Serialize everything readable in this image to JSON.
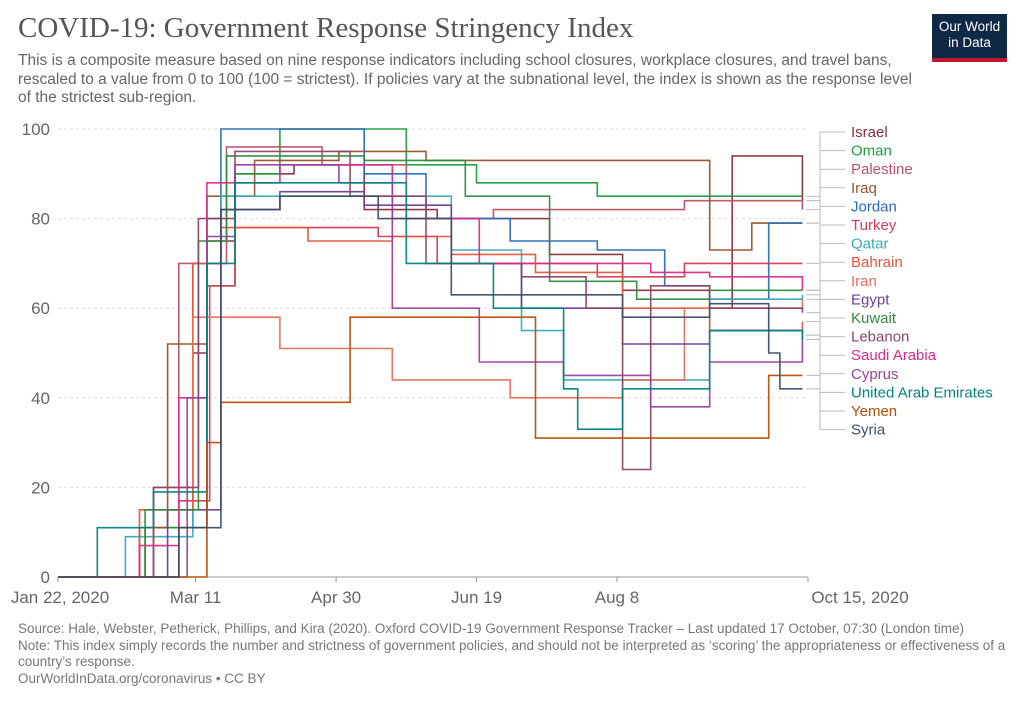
{
  "header": {
    "title": "COVID-19: Government Response Stringency Index",
    "subtitle": "This is a composite measure based on nine response indicators including school closures, workplace closures, and travel bans, rescaled to a value from 0 to 100 (100 = strictest). If policies vary at the subnational level, the index is shown as the response level of the strictest sub-region.",
    "logo_line1": "Our World",
    "logo_line2": "in Data"
  },
  "footer": {
    "source": "Source: Hale, Webster, Petherick, Phillips, and Kira (2020). Oxford COVID-19 Government Response Tracker – Last updated 17 October, 07:30 (London time)",
    "note": "Note: This index simply records the number and strictness of government policies, and should not be interpreted as ‘scoring’ the appropriateness or effectiveness of a country’s response.",
    "credit": "OurWorldInData.org/coronavirus • CC BY"
  },
  "colors": {
    "logo_bg": "#0f2846",
    "logo_accent": "#c0162e"
  },
  "chart_data": {
    "type": "line",
    "x_start": "2020-01-22",
    "x_end": "2020-10-15",
    "x_tick_labels": [
      "Jan 22, 2020",
      "Mar 11",
      "Apr 30",
      "Jun 19",
      "Aug 8",
      "Oct 15, 2020"
    ],
    "x_tick_dates": [
      "2020-01-22",
      "2020-03-11",
      "2020-04-30",
      "2020-06-19",
      "2020-08-08",
      "2020-10-15"
    ],
    "ylim": [
      0,
      100
    ],
    "y_ticks": [
      0,
      20,
      40,
      60,
      80,
      100
    ],
    "grid": "horizontal",
    "legend": "right",
    "series": [
      {
        "name": "Israel",
        "color": "#883039",
        "values": [
          [
            "2020-01-22",
            0
          ],
          [
            "2020-02-20",
            11
          ],
          [
            "2020-03-10",
            50
          ],
          [
            "2020-03-15",
            75
          ],
          [
            "2020-03-25",
            90
          ],
          [
            "2020-04-15",
            92
          ],
          [
            "2020-05-10",
            82
          ],
          [
            "2020-06-05",
            80
          ],
          [
            "2020-07-15",
            72
          ],
          [
            "2020-08-10",
            64
          ],
          [
            "2020-09-10",
            60
          ],
          [
            "2020-09-18",
            94
          ],
          [
            "2020-09-30",
            94
          ],
          [
            "2020-10-13",
            84
          ]
        ]
      },
      {
        "name": "Oman",
        "color": "#1a9e3e",
        "values": [
          [
            "2020-01-22",
            0
          ],
          [
            "2020-02-25",
            11
          ],
          [
            "2020-03-15",
            65
          ],
          [
            "2020-03-25",
            90
          ],
          [
            "2020-04-10",
            100
          ],
          [
            "2020-05-15",
            100
          ],
          [
            "2020-05-25",
            92
          ],
          [
            "2020-06-19",
            88
          ],
          [
            "2020-07-15",
            88
          ],
          [
            "2020-08-01",
            85
          ],
          [
            "2020-09-01",
            85
          ],
          [
            "2020-10-13",
            85
          ]
        ]
      },
      {
        "name": "Palestine",
        "color": "#c15065",
        "values": [
          [
            "2020-01-22",
            0
          ],
          [
            "2020-03-05",
            70
          ],
          [
            "2020-03-22",
            96
          ],
          [
            "2020-04-25",
            92
          ],
          [
            "2020-05-25",
            80
          ],
          [
            "2020-06-25",
            82
          ],
          [
            "2020-07-25",
            82
          ],
          [
            "2020-09-01",
            84
          ],
          [
            "2020-10-13",
            82
          ]
        ]
      },
      {
        "name": "Iraq",
        "color": "#9a5129",
        "values": [
          [
            "2020-01-22",
            0
          ],
          [
            "2020-02-22",
            11
          ],
          [
            "2020-03-01",
            52
          ],
          [
            "2020-03-15",
            85
          ],
          [
            "2020-04-01",
            93
          ],
          [
            "2020-05-01",
            95
          ],
          [
            "2020-06-01",
            93
          ],
          [
            "2020-07-10",
            93
          ],
          [
            "2020-08-20",
            93
          ],
          [
            "2020-09-10",
            73
          ],
          [
            "2020-09-25",
            79
          ],
          [
            "2020-10-13",
            79
          ]
        ]
      },
      {
        "name": "Jordan",
        "color": "#286bbb",
        "values": [
          [
            "2020-01-22",
            0
          ],
          [
            "2020-03-05",
            11
          ],
          [
            "2020-03-15",
            80
          ],
          [
            "2020-03-20",
            100
          ],
          [
            "2020-04-25",
            100
          ],
          [
            "2020-05-10",
            90
          ],
          [
            "2020-06-01",
            80
          ],
          [
            "2020-07-01",
            75
          ],
          [
            "2020-08-01",
            73
          ],
          [
            "2020-08-25",
            65
          ],
          [
            "2020-09-10",
            62
          ],
          [
            "2020-10-01",
            79
          ],
          [
            "2020-10-13",
            79
          ]
        ]
      },
      {
        "name": "Turkey",
        "color": "#d73c50",
        "values": [
          [
            "2020-01-22",
            0
          ],
          [
            "2020-03-05",
            17
          ],
          [
            "2020-03-16",
            65
          ],
          [
            "2020-03-25",
            78
          ],
          [
            "2020-04-10",
            78
          ],
          [
            "2020-05-15",
            76
          ],
          [
            "2020-06-05",
            70
          ],
          [
            "2020-07-01",
            70
          ],
          [
            "2020-08-01",
            67
          ],
          [
            "2020-09-01",
            70
          ],
          [
            "2020-10-13",
            70
          ]
        ]
      },
      {
        "name": "Qatar",
        "color": "#38aaba",
        "values": [
          [
            "2020-01-22",
            0
          ],
          [
            "2020-02-15",
            9
          ],
          [
            "2020-03-10",
            70
          ],
          [
            "2020-03-20",
            85
          ],
          [
            "2020-05-01",
            85
          ],
          [
            "2020-06-10",
            73
          ],
          [
            "2020-07-05",
            55
          ],
          [
            "2020-07-20",
            44
          ],
          [
            "2020-08-10",
            44
          ],
          [
            "2020-09-10",
            62
          ],
          [
            "2020-10-13",
            63
          ]
        ]
      },
      {
        "name": "Bahrain",
        "color": "#e6543c",
        "values": [
          [
            "2020-01-22",
            0
          ],
          [
            "2020-02-20",
            15
          ],
          [
            "2020-03-10",
            70
          ],
          [
            "2020-03-20",
            78
          ],
          [
            "2020-04-20",
            75
          ],
          [
            "2020-05-20",
            76
          ],
          [
            "2020-06-10",
            72
          ],
          [
            "2020-07-10",
            68
          ],
          [
            "2020-08-10",
            60
          ],
          [
            "2020-09-10",
            55
          ],
          [
            "2020-10-13",
            57
          ]
        ]
      },
      {
        "name": "Iran",
        "color": "#e56e5a",
        "values": [
          [
            "2020-01-22",
            0
          ],
          [
            "2020-02-25",
            20
          ],
          [
            "2020-03-10",
            58
          ],
          [
            "2020-03-20",
            58
          ],
          [
            "2020-04-10",
            51
          ],
          [
            "2020-05-01",
            51
          ],
          [
            "2020-05-20",
            44
          ],
          [
            "2020-06-05",
            44
          ],
          [
            "2020-07-01",
            40
          ],
          [
            "2020-08-10",
            44
          ],
          [
            "2020-09-01",
            60
          ],
          [
            "2020-10-13",
            62
          ]
        ]
      },
      {
        "name": "Egypt",
        "color": "#6d3e91",
        "values": [
          [
            "2020-01-22",
            0
          ],
          [
            "2020-03-01",
            15
          ],
          [
            "2020-03-20",
            82
          ],
          [
            "2020-04-10",
            86
          ],
          [
            "2020-05-10",
            83
          ],
          [
            "2020-06-10",
            70
          ],
          [
            "2020-07-05",
            60
          ],
          [
            "2020-07-25",
            60
          ],
          [
            "2020-08-10",
            52
          ],
          [
            "2020-09-10",
            55
          ],
          [
            "2020-10-13",
            54
          ]
        ]
      },
      {
        "name": "Kuwait",
        "color": "#2f8a3e",
        "values": [
          [
            "2020-01-22",
            0
          ],
          [
            "2020-02-22",
            15
          ],
          [
            "2020-03-12",
            75
          ],
          [
            "2020-03-22",
            94
          ],
          [
            "2020-05-10",
            93
          ],
          [
            "2020-06-15",
            85
          ],
          [
            "2020-07-15",
            66
          ],
          [
            "2020-08-15",
            62
          ],
          [
            "2020-09-10",
            64
          ],
          [
            "2020-10-13",
            64
          ]
        ]
      },
      {
        "name": "Lebanon",
        "color": "#8c4569",
        "values": [
          [
            "2020-01-22",
            0
          ],
          [
            "2020-02-25",
            20
          ],
          [
            "2020-03-12",
            80
          ],
          [
            "2020-03-25",
            95
          ],
          [
            "2020-05-05",
            85
          ],
          [
            "2020-06-01",
            70
          ],
          [
            "2020-07-05",
            67
          ],
          [
            "2020-07-28",
            60
          ],
          [
            "2020-08-10",
            24
          ],
          [
            "2020-08-20",
            65
          ],
          [
            "2020-09-10",
            60
          ],
          [
            "2020-10-13",
            59
          ]
        ]
      },
      {
        "name": "Saudi Arabia",
        "color": "#d92b8a",
        "values": [
          [
            "2020-01-22",
            0
          ],
          [
            "2020-02-20",
            7
          ],
          [
            "2020-03-05",
            40
          ],
          [
            "2020-03-15",
            88
          ],
          [
            "2020-04-10",
            92
          ],
          [
            "2020-05-20",
            80
          ],
          [
            "2020-06-20",
            70
          ],
          [
            "2020-07-20",
            70
          ],
          [
            "2020-08-20",
            68
          ],
          [
            "2020-09-10",
            67
          ],
          [
            "2020-10-13",
            64
          ]
        ]
      },
      {
        "name": "Cyprus",
        "color": "#9a3f9e",
        "values": [
          [
            "2020-01-22",
            0
          ],
          [
            "2020-03-08",
            40
          ],
          [
            "2020-03-15",
            76
          ],
          [
            "2020-03-25",
            92
          ],
          [
            "2020-05-01",
            88
          ],
          [
            "2020-05-20",
            60
          ],
          [
            "2020-06-20",
            48
          ],
          [
            "2020-07-20",
            45
          ],
          [
            "2020-08-20",
            38
          ],
          [
            "2020-09-10",
            48
          ],
          [
            "2020-10-13",
            54
          ]
        ]
      },
      {
        "name": "United Arab Emirates",
        "color": "#00847e",
        "values": [
          [
            "2020-01-22",
            0
          ],
          [
            "2020-02-05",
            11
          ],
          [
            "2020-02-25",
            19
          ],
          [
            "2020-03-15",
            70
          ],
          [
            "2020-03-25",
            88
          ],
          [
            "2020-04-30",
            88
          ],
          [
            "2020-05-25",
            70
          ],
          [
            "2020-06-25",
            60
          ],
          [
            "2020-07-20",
            42
          ],
          [
            "2020-07-25",
            33
          ],
          [
            "2020-08-10",
            42
          ],
          [
            "2020-09-10",
            55
          ],
          [
            "2020-10-13",
            53
          ]
        ]
      },
      {
        "name": "Yemen",
        "color": "#b84d05",
        "values": [
          [
            "2020-01-22",
            0
          ],
          [
            "2020-03-10",
            0
          ],
          [
            "2020-03-15",
            30
          ],
          [
            "2020-03-20",
            39
          ],
          [
            "2020-04-15",
            39
          ],
          [
            "2020-05-05",
            58
          ],
          [
            "2020-06-05",
            58
          ],
          [
            "2020-07-05",
            58
          ],
          [
            "2020-07-10",
            31
          ],
          [
            "2020-09-01",
            31
          ],
          [
            "2020-10-01",
            45
          ],
          [
            "2020-10-13",
            45
          ]
        ]
      },
      {
        "name": "Syria",
        "color": "#3c4e66",
        "values": [
          [
            "2020-01-22",
            0
          ],
          [
            "2020-03-05",
            11
          ],
          [
            "2020-03-20",
            82
          ],
          [
            "2020-04-10",
            85
          ],
          [
            "2020-05-15",
            80
          ],
          [
            "2020-06-10",
            63
          ],
          [
            "2020-07-10",
            63
          ],
          [
            "2020-08-10",
            58
          ],
          [
            "2020-09-10",
            61
          ],
          [
            "2020-10-01",
            50
          ],
          [
            "2020-10-05",
            42
          ],
          [
            "2020-10-13",
            42
          ]
        ]
      }
    ]
  }
}
